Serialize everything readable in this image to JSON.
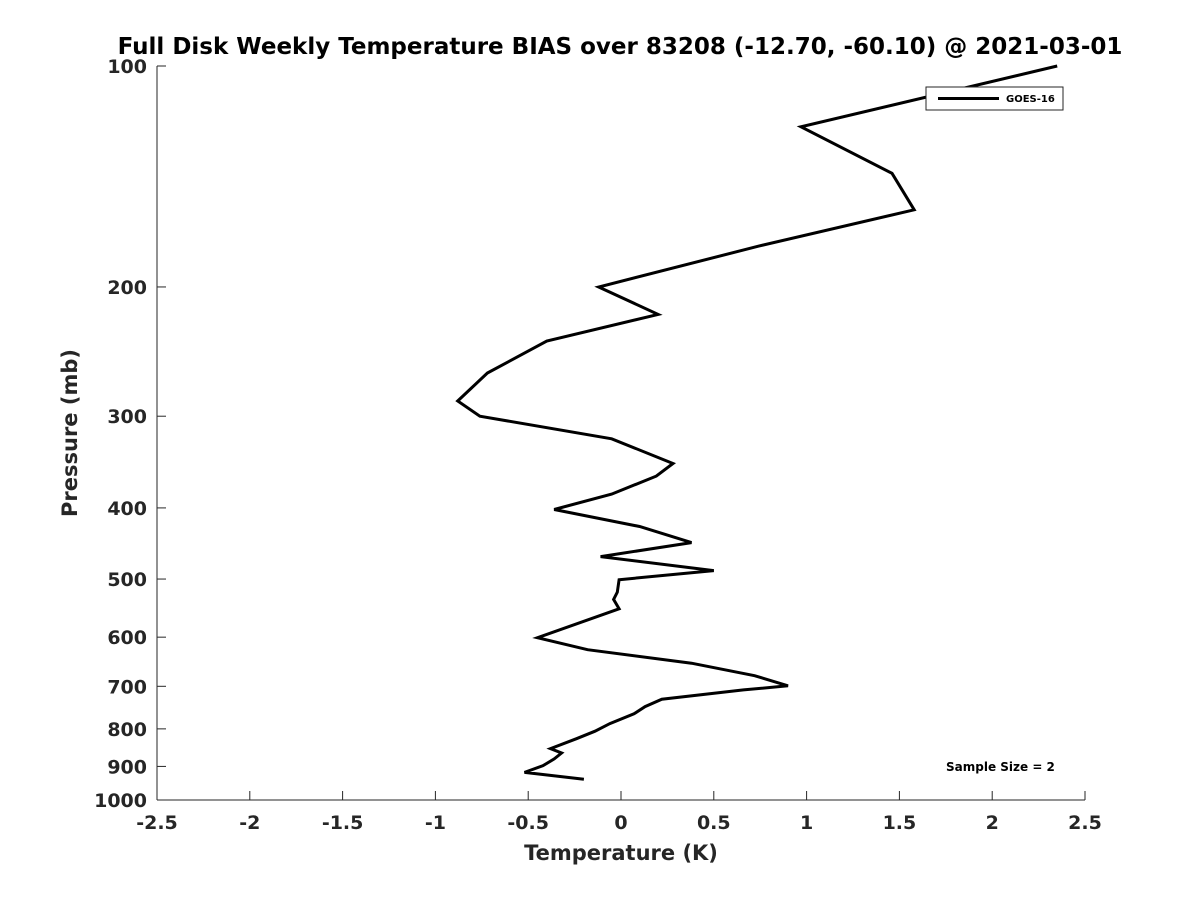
{
  "chart_data": {
    "type": "line",
    "title": "Full Disk Weekly Temperature BIAS over 83208 (-12.70, -60.10) @ 2021-03-01",
    "xlabel": "Temperature (K)",
    "ylabel": "Pressure (mb)",
    "xlim": [
      -2.5,
      2.5
    ],
    "ylim": [
      100,
      1000
    ],
    "y_scale": "log",
    "y_reversed": true,
    "x_ticks": [
      "-2.5",
      "-2",
      "-1.5",
      "-1",
      "-0.5",
      "0",
      "0.5",
      "1",
      "1.5",
      "2",
      "2.5"
    ],
    "x_tick_values": [
      -2.5,
      -2,
      -1.5,
      -1,
      -0.5,
      0,
      0.5,
      1,
      1.5,
      2,
      2.5
    ],
    "y_ticks": [
      "100",
      "200",
      "300",
      "400",
      "500",
      "600",
      "700",
      "800",
      "900",
      "1000"
    ],
    "y_tick_values": [
      100,
      200,
      300,
      400,
      500,
      600,
      700,
      800,
      900,
      1000
    ],
    "grid": false,
    "legend_position": "top-right",
    "annotation": "Sample Size = 2",
    "series": [
      {
        "name": "GOES-16",
        "color": "#000000",
        "points": [
          {
            "x": 2.35,
            "p": 100
          },
          {
            "x": 0.97,
            "p": 121
          },
          {
            "x": 1.46,
            "p": 140
          },
          {
            "x": 1.58,
            "p": 157
          },
          {
            "x": 0.74,
            "p": 176
          },
          {
            "x": -0.12,
            "p": 200
          },
          {
            "x": 0.2,
            "p": 218
          },
          {
            "x": -0.4,
            "p": 237
          },
          {
            "x": -0.72,
            "p": 262
          },
          {
            "x": -0.88,
            "p": 286
          },
          {
            "x": -0.76,
            "p": 300
          },
          {
            "x": -0.05,
            "p": 322
          },
          {
            "x": 0.28,
            "p": 348
          },
          {
            "x": 0.19,
            "p": 362
          },
          {
            "x": -0.05,
            "p": 383
          },
          {
            "x": -0.36,
            "p": 402
          },
          {
            "x": 0.1,
            "p": 424
          },
          {
            "x": 0.38,
            "p": 446
          },
          {
            "x": -0.11,
            "p": 466
          },
          {
            "x": 0.5,
            "p": 487
          },
          {
            "x": -0.01,
            "p": 501
          },
          {
            "x": -0.02,
            "p": 521
          },
          {
            "x": -0.04,
            "p": 533
          },
          {
            "x": -0.01,
            "p": 549
          },
          {
            "x": -0.45,
            "p": 601
          },
          {
            "x": -0.18,
            "p": 624
          },
          {
            "x": 0.38,
            "p": 651
          },
          {
            "x": 0.72,
            "p": 677
          },
          {
            "x": 0.9,
            "p": 699
          },
          {
            "x": 0.66,
            "p": 708
          },
          {
            "x": 0.22,
            "p": 729
          },
          {
            "x": 0.13,
            "p": 746
          },
          {
            "x": 0.07,
            "p": 763
          },
          {
            "x": -0.06,
            "p": 787
          },
          {
            "x": -0.14,
            "p": 806
          },
          {
            "x": -0.24,
            "p": 825
          },
          {
            "x": -0.38,
            "p": 851
          },
          {
            "x": -0.32,
            "p": 863
          },
          {
            "x": -0.36,
            "p": 879
          },
          {
            "x": -0.42,
            "p": 898
          },
          {
            "x": -0.52,
            "p": 917
          },
          {
            "x": -0.2,
            "p": 937
          }
        ]
      }
    ]
  }
}
